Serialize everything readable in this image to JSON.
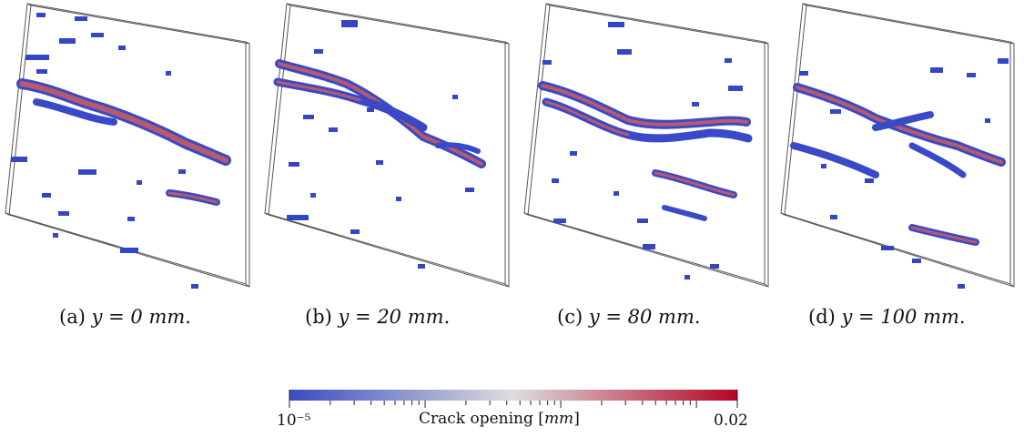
{
  "panels": [
    {
      "id": "a",
      "caption_prefix": "(a) ",
      "caption_math": "y = 0 mm",
      "caption_suffix": "."
    },
    {
      "id": "b",
      "caption_prefix": "(b) ",
      "caption_math": "y = 20 mm",
      "caption_suffix": "."
    },
    {
      "id": "c",
      "caption_prefix": "(c) ",
      "caption_math": "y = 80 mm",
      "caption_suffix": "."
    },
    {
      "id": "d",
      "caption_prefix": "(d) ",
      "caption_math": "y = 100 mm",
      "caption_suffix": "."
    }
  ],
  "colorbar": {
    "title_text": "Crack opening [",
    "title_unit": "mm",
    "title_close": "]",
    "min_label": "10⁻⁵",
    "max_label": "0.02",
    "scale": "log",
    "color_low": "#3b4cc0",
    "color_mid": "#dddddd",
    "color_high": "#b40426"
  }
}
